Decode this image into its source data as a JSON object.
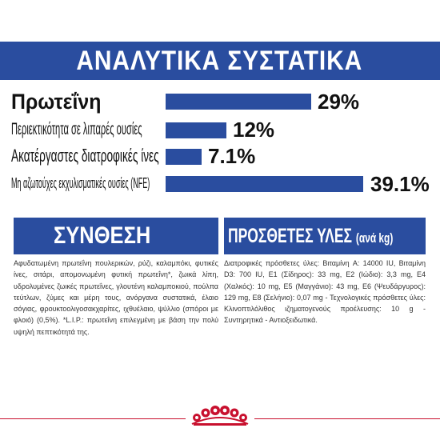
{
  "header": {
    "title": "ΑΝΑΛΥΤΙΚΑ ΣΥΣΤΑΤΙΚΑ"
  },
  "analysis": [
    {
      "label": "Πρωτεΐνη",
      "value": "29%"
    },
    {
      "label": "Περιεκτικότητα σε λιπαρές ουσίες",
      "value": "12%"
    },
    {
      "label": "Ακατέργαστες διατροφικές ίνες",
      "value": "7.1%"
    },
    {
      "label": "Μη αζωτούχες εκχυλισματικές ουσίες (NFE)",
      "value": "39.1%"
    }
  ],
  "composition": {
    "title": "ΣΥΝΘΕΣΗ",
    "text": "Αφυδατωμένη πρωτεΐνη πουλερικών, ρύζι, καλαμπόκι, φυτικές ίνες, σιτάρι, απομονωμένη φυτική πρωτεΐνη*, ζωικά λίπη, υδρολυμένες ζωικές πρωτεΐνες, γλουτένη καλαμποκιού, πούλπα τεύτλων, ζύμες και μέρη τους, ανόργανα συστατικά, έλαιο σόγιας, φρουκτοολιγοσακχαρίτες, ιχθυέλαιο, ψύλλιο (σπόροι με φλοιό) (0,5%). *L.I.P.: πρωτεΐνη επιλεγμένη με βάση την πολύ υψηλή πεπτικότητά της."
  },
  "additives": {
    "title": "ΠΡΟΣΘΕΤΕΣ ΥΛΕΣ",
    "title_suffix": "(ανά kg)",
    "text": "Διατροφικές πρόσθετες ύλες: Βιταμίνη A: 14000 IU, Βιταμίνη D3: 700 IU, E1 (Σίδηρος): 33 mg, E2 (Ιώδιο): 3,3 mg, E4 (Χαλκός): 10 mg, E5 (Μαγγάνιο): 43 mg, E6 (Ψευδάργυρος): 129 mg, E8 (Σελήνιο): 0,07 mg - Τεχνολογικές πρόσθετες ύλες: Κλινοπτιλόλιθος ιζηματογενούς προέλευσης: 10 g - Συντηρητικά - Αντιοξειδωτικά."
  },
  "colors": {
    "brand_blue": "#2a4d9f",
    "accent_red": "#c8102e"
  },
  "icons": {
    "footer_logo": "royal-canin-crown-icon"
  }
}
